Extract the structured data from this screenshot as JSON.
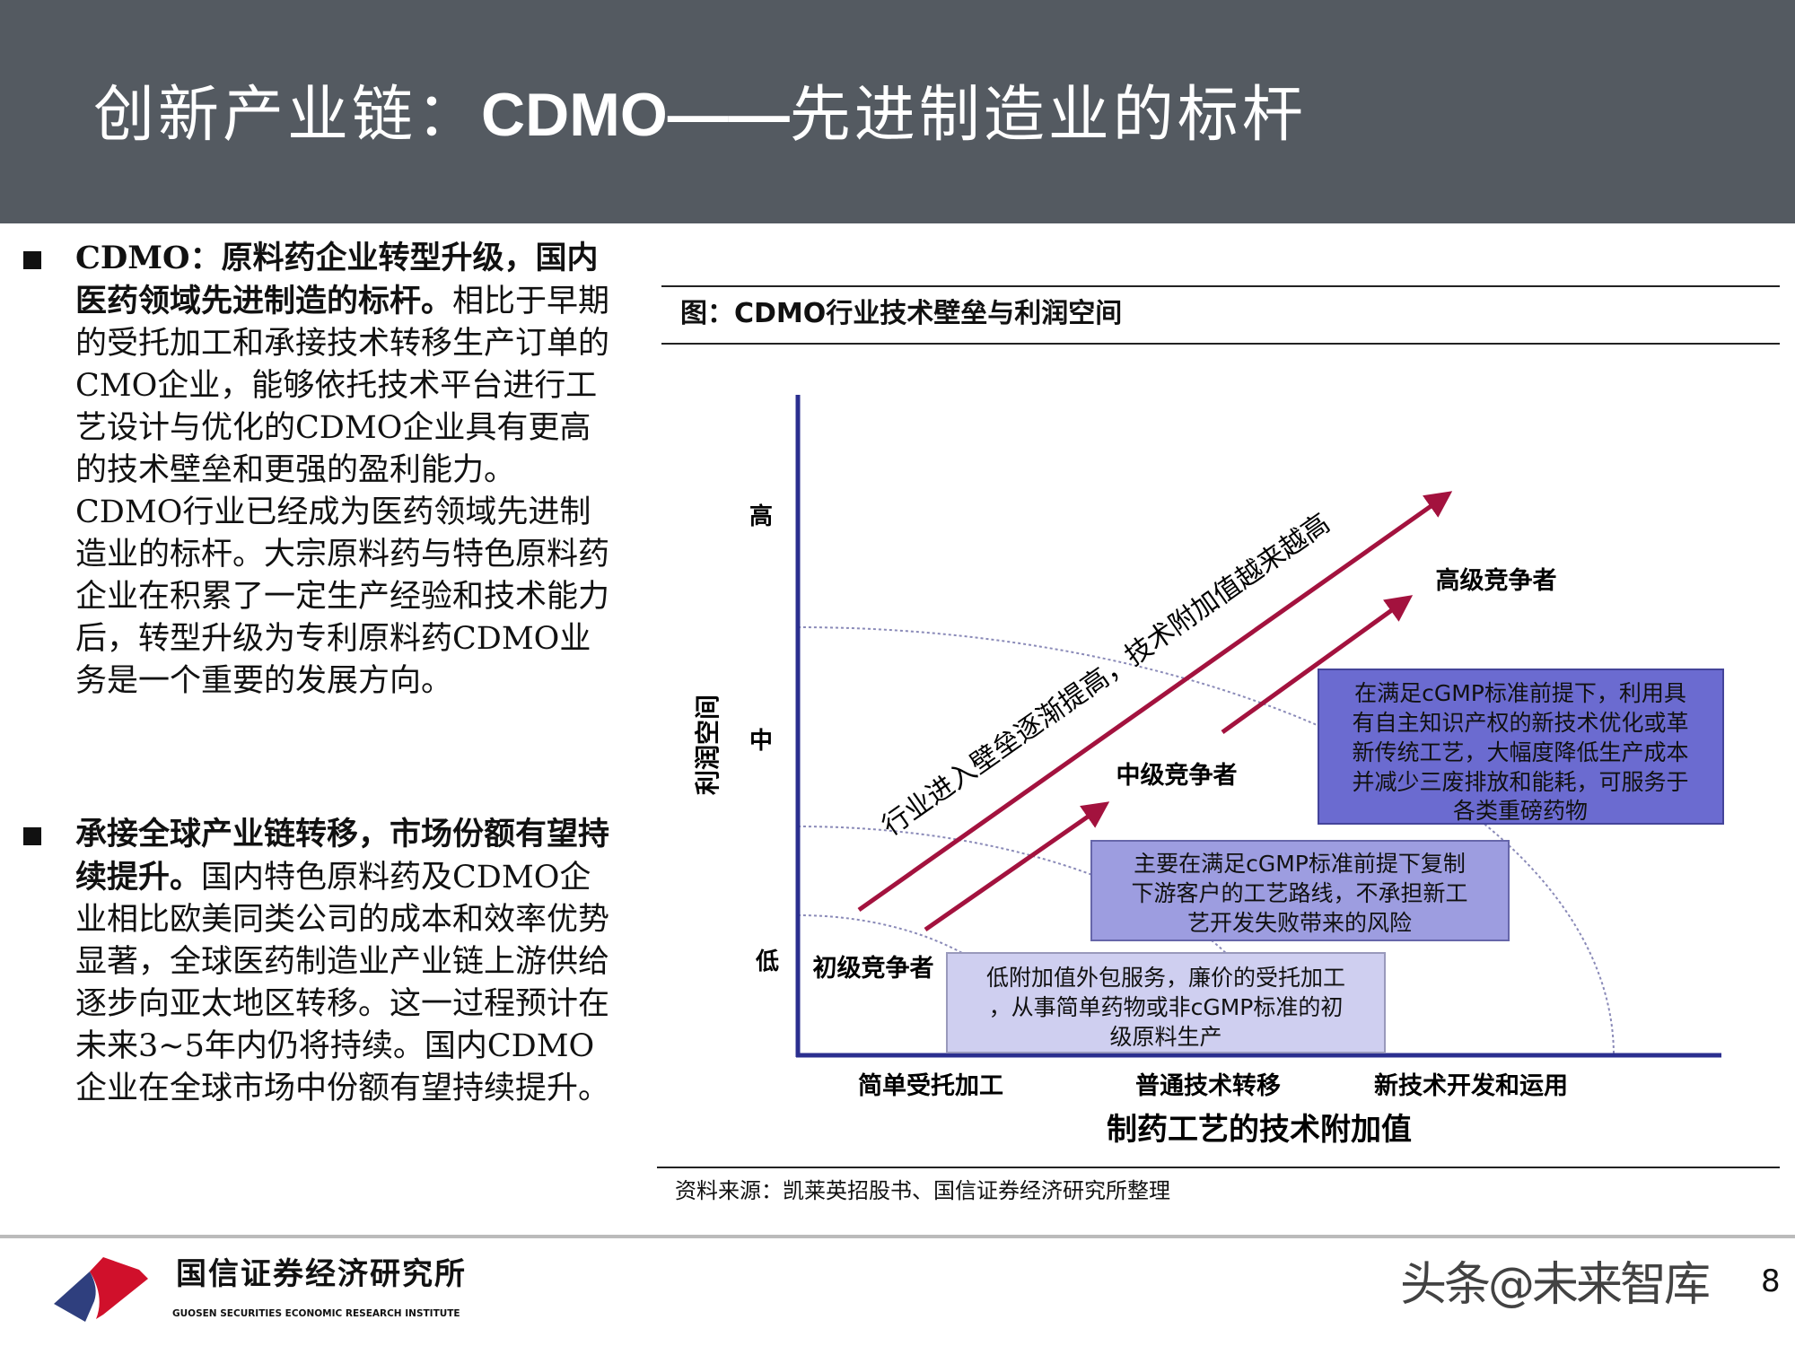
{
  "header": {
    "title_prefix": "创新产业链：",
    "title_bold": "CDMO——",
    "title_suffix": "先进制造业的标杆"
  },
  "body": {
    "paragraphs": [
      {
        "lead": "CDMO：原料药企业转型升级，国内医药领域先进制造的标杆。",
        "text": "相比于早期的受托加工和承接技术转移生产订单的CMO企业，能够依托技术平台进行工艺设计与优化的CDMO企业具有更高的技术壁垒和更强的盈利能力。CDMO行业已经成为医药领域先进制造业的标杆。大宗原料药与特色原料药企业在积累了一定生产经验和技术能力后，转型升级为专利原料药CDMO业务是一个重要的发展方向。"
      },
      {
        "lead": "承接全球产业链转移，市场份额有望持续提升。",
        "text": "国内特色原料药及CDMO企业相比欧美同类公司的成本和效率优势显著，全球医药制造业产业链上游供给逐步向亚太地区转移。这一过程预计在未来3~5年内仍将持续。国内CDMO企业在全球市场中份额有望持续提升。"
      }
    ]
  },
  "figure": {
    "caption": "图：CDMO行业技术壁垒与利润空间",
    "source": "资料来源：凯莱英招股书、国信证券经济研究所整理",
    "y_axis_title": "利润空间",
    "y_levels": [
      "高",
      "中",
      "低"
    ],
    "x_axis_title": "制药工艺的技术附加值",
    "x_levels": [
      "简单受托加工",
      "普通技术转移",
      "新技术开发和运用"
    ],
    "trend_label": "行业进入壁垒逐渐提高，技术附加值越来越高",
    "tiers": [
      {
        "label": "初级竞争者",
        "lines": [
          "低附加值外包服务，廉价的受托加工",
          "，从事简单药物或非cGMP标准的初",
          "级原料生产"
        ],
        "color": "#cfcff0"
      },
      {
        "label": "中级竞争者",
        "lines": [
          "主要在满足cGMP标准前提下复制",
          "下游客户的工艺路线，不承担新工",
          "艺开发失败带来的风险"
        ],
        "color": "#9d9de0"
      },
      {
        "label": "高级竞争者",
        "lines": [
          "在满足cGMP标准前提下，利用具",
          "有自主知识产权的新技术优化或革",
          "新传统工艺，大幅度降低生产成本",
          "并减少三废排放和能耗，可服务于",
          "各类重磅药物"
        ],
        "color": "#6b6bd0"
      }
    ],
    "arrow_color": "#a3123e",
    "axis_color": "#2b2f8f"
  },
  "footer": {
    "logo_cn": "国信证券经济研究所",
    "logo_en": "GUOSEN SECURITIES ECONOMIC RESEARCH INSTITUTE",
    "watermark": "头条@未来智库",
    "page": "8"
  }
}
